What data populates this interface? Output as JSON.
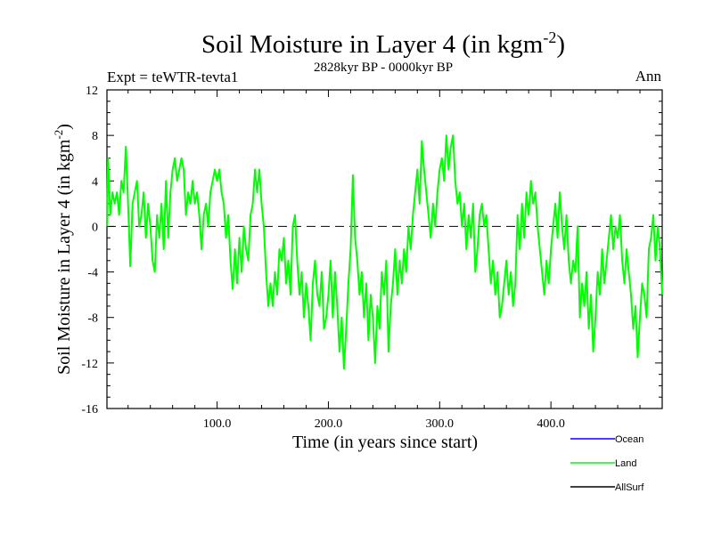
{
  "header": {
    "title": "Soil Moisture in Layer 4 (in kgm",
    "title_sup": "-2",
    "title_close": ")",
    "expt": "Expt = teWTR-tevta1",
    "period": "2828kyr BP - 0000kyr BP",
    "season": "Ann"
  },
  "axes": {
    "xlabel": "Time (in years since start)",
    "ylabel": "Soil Moisture in Layer 4 (in kgm",
    "ylabel_sup": "-2",
    "ylabel_close": ")"
  },
  "legend": {
    "items": [
      {
        "label": "Ocean",
        "color": "#0000ff"
      },
      {
        "label": "Land",
        "color": "#00ff00"
      },
      {
        "label": "AllSurf",
        "color": "#000000"
      }
    ]
  },
  "chart_data": {
    "type": "line",
    "title": "Soil Moisture in Layer 4 (in kgm-2)",
    "subtitle": "2828kyr BP - 0000kyr BP",
    "xlabel": "Time (in years since start)",
    "ylabel": "Soil Moisture in Layer 4 (in kgm-2)",
    "xlim": [
      1,
      500
    ],
    "ylim": [
      -16,
      12
    ],
    "xticks": [
      100,
      200,
      300,
      400
    ],
    "xtick_labels": [
      "100.0",
      "200.0",
      "300.0",
      "400.0"
    ],
    "yticks": [
      -16,
      -12,
      -8,
      -4,
      0,
      4,
      8,
      12
    ],
    "ytick_labels": [
      "-16",
      "-12",
      "-8",
      "-4",
      "0",
      "4",
      "8",
      "12"
    ],
    "zero_line": true,
    "series": [
      {
        "name": "Land",
        "color": "#00ff00",
        "points": [
          [
            1,
            0
          ],
          [
            2,
            6
          ],
          [
            4,
            1
          ],
          [
            6,
            3
          ],
          [
            8,
            2
          ],
          [
            10,
            3
          ],
          [
            12,
            1
          ],
          [
            14,
            4
          ],
          [
            16,
            3
          ],
          [
            18,
            7
          ],
          [
            20,
            2
          ],
          [
            22,
            -3.5
          ],
          [
            24,
            2
          ],
          [
            26,
            3
          ],
          [
            28,
            4
          ],
          [
            30,
            0
          ],
          [
            32,
            1
          ],
          [
            34,
            3
          ],
          [
            36,
            -1
          ],
          [
            38,
            2
          ],
          [
            40,
            0
          ],
          [
            42,
            -3
          ],
          [
            44,
            -4
          ],
          [
            46,
            1
          ],
          [
            48,
            -1
          ],
          [
            50,
            2
          ],
          [
            52,
            -2
          ],
          [
            54,
            4
          ],
          [
            56,
            -1
          ],
          [
            58,
            3
          ],
          [
            60,
            5
          ],
          [
            62,
            6
          ],
          [
            64,
            4
          ],
          [
            66,
            5
          ],
          [
            68,
            6
          ],
          [
            70,
            5
          ],
          [
            72,
            1
          ],
          [
            74,
            3
          ],
          [
            76,
            2
          ],
          [
            78,
            4
          ],
          [
            80,
            2
          ],
          [
            82,
            3
          ],
          [
            84,
            1
          ],
          [
            86,
            -2
          ],
          [
            88,
            1
          ],
          [
            90,
            2
          ],
          [
            92,
            0
          ],
          [
            94,
            3
          ],
          [
            96,
            4
          ],
          [
            98,
            5
          ],
          [
            100,
            4
          ],
          [
            102,
            5
          ],
          [
            104,
            3
          ],
          [
            106,
            2
          ],
          [
            108,
            -1
          ],
          [
            110,
            1
          ],
          [
            112,
            -3
          ],
          [
            114,
            -5.5
          ],
          [
            116,
            -2
          ],
          [
            118,
            -5
          ],
          [
            120,
            -1
          ],
          [
            122,
            -4
          ],
          [
            124,
            0
          ],
          [
            126,
            -2
          ],
          [
            128,
            -3
          ],
          [
            130,
            1
          ],
          [
            132,
            2
          ],
          [
            134,
            5
          ],
          [
            136,
            3
          ],
          [
            138,
            5
          ],
          [
            140,
            2
          ],
          [
            142,
            0
          ],
          [
            144,
            -4
          ],
          [
            146,
            -7
          ],
          [
            148,
            -5
          ],
          [
            150,
            -7
          ],
          [
            152,
            -4
          ],
          [
            154,
            -6
          ],
          [
            156,
            -2
          ],
          [
            158,
            -3
          ],
          [
            160,
            -1
          ],
          [
            162,
            -5
          ],
          [
            164,
            -3
          ],
          [
            166,
            -6
          ],
          [
            168,
            0
          ],
          [
            170,
            1
          ],
          [
            172,
            -3
          ],
          [
            174,
            -6
          ],
          [
            176,
            -4
          ],
          [
            178,
            -8
          ],
          [
            180,
            -5
          ],
          [
            182,
            -7
          ],
          [
            184,
            -10
          ],
          [
            186,
            -5
          ],
          [
            188,
            -3
          ],
          [
            190,
            -6
          ],
          [
            192,
            -7
          ],
          [
            194,
            -4
          ],
          [
            196,
            -9
          ],
          [
            198,
            -8
          ],
          [
            200,
            -6
          ],
          [
            202,
            -3
          ],
          [
            204,
            -8
          ],
          [
            206,
            -4
          ],
          [
            208,
            -7
          ],
          [
            210,
            -11
          ],
          [
            212,
            -8
          ],
          [
            214,
            -12.5
          ],
          [
            216,
            -9
          ],
          [
            218,
            -5
          ],
          [
            220,
            -2
          ],
          [
            222,
            4.5
          ],
          [
            224,
            -1
          ],
          [
            226,
            -3
          ],
          [
            228,
            -6
          ],
          [
            230,
            -4
          ],
          [
            232,
            -8
          ],
          [
            234,
            -5
          ],
          [
            236,
            -10
          ],
          [
            238,
            -6
          ],
          [
            240,
            -8
          ],
          [
            242,
            -12
          ],
          [
            244,
            -7
          ],
          [
            246,
            -9
          ],
          [
            248,
            -4
          ],
          [
            250,
            -6
          ],
          [
            252,
            -3
          ],
          [
            254,
            -11
          ],
          [
            256,
            -7
          ],
          [
            258,
            -5
          ],
          [
            260,
            -2
          ],
          [
            262,
            -6
          ],
          [
            264,
            -3
          ],
          [
            266,
            -5
          ],
          [
            268,
            -2
          ],
          [
            270,
            -4
          ],
          [
            272,
            0
          ],
          [
            274,
            -2
          ],
          [
            276,
            1
          ],
          [
            278,
            3
          ],
          [
            280,
            5
          ],
          [
            282,
            2
          ],
          [
            284,
            7.5
          ],
          [
            286,
            5
          ],
          [
            288,
            3
          ],
          [
            290,
            1
          ],
          [
            292,
            -1
          ],
          [
            294,
            2
          ],
          [
            296,
            0
          ],
          [
            298,
            3
          ],
          [
            300,
            5
          ],
          [
            302,
            6
          ],
          [
            304,
            4
          ],
          [
            306,
            8
          ],
          [
            308,
            5
          ],
          [
            310,
            7
          ],
          [
            312,
            8
          ],
          [
            314,
            4
          ],
          [
            316,
            2
          ],
          [
            318,
            3
          ],
          [
            320,
            0
          ],
          [
            322,
            2
          ],
          [
            324,
            -2
          ],
          [
            326,
            1
          ],
          [
            328,
            -1
          ],
          [
            330,
            2
          ],
          [
            332,
            -4
          ],
          [
            334,
            -2
          ],
          [
            336,
            1
          ],
          [
            338,
            2
          ],
          [
            340,
            0
          ],
          [
            342,
            1
          ],
          [
            344,
            -2
          ],
          [
            346,
            -5
          ],
          [
            348,
            -3
          ],
          [
            350,
            -6
          ],
          [
            352,
            -4
          ],
          [
            354,
            -8
          ],
          [
            356,
            -7
          ],
          [
            358,
            -5
          ],
          [
            360,
            -3
          ],
          [
            362,
            -6
          ],
          [
            364,
            -4
          ],
          [
            366,
            -7
          ],
          [
            368,
            -5
          ],
          [
            370,
            1
          ],
          [
            372,
            -2
          ],
          [
            374,
            2
          ],
          [
            376,
            -1
          ],
          [
            378,
            3
          ],
          [
            380,
            1
          ],
          [
            382,
            4
          ],
          [
            384,
            2
          ],
          [
            386,
            3
          ],
          [
            388,
            0
          ],
          [
            390,
            -2
          ],
          [
            392,
            -4
          ],
          [
            394,
            -6
          ],
          [
            396,
            -3
          ],
          [
            398,
            -5
          ],
          [
            400,
            -2
          ],
          [
            402,
            0
          ],
          [
            404,
            2
          ],
          [
            406,
            -1
          ],
          [
            408,
            3
          ],
          [
            410,
            0
          ],
          [
            412,
            -2
          ],
          [
            414,
            1
          ],
          [
            416,
            -3
          ],
          [
            418,
            -5
          ],
          [
            420,
            -3
          ],
          [
            422,
            -4
          ],
          [
            424,
            0
          ],
          [
            426,
            -8
          ],
          [
            428,
            -5
          ],
          [
            430,
            -7
          ],
          [
            432,
            -4
          ],
          [
            434,
            -9
          ],
          [
            436,
            -6
          ],
          [
            438,
            -11
          ],
          [
            440,
            -8
          ],
          [
            442,
            -4
          ],
          [
            444,
            -6
          ],
          [
            446,
            -2
          ],
          [
            448,
            -5
          ],
          [
            450,
            -3
          ],
          [
            452,
            -1
          ],
          [
            454,
            1
          ],
          [
            456,
            -2
          ],
          [
            458,
            0
          ],
          [
            460,
            -1
          ],
          [
            462,
            1
          ],
          [
            464,
            -3
          ],
          [
            466,
            -5
          ],
          [
            468,
            -2
          ],
          [
            470,
            -4
          ],
          [
            472,
            -6
          ],
          [
            474,
            -9
          ],
          [
            476,
            -7
          ],
          [
            478,
            -11.5
          ],
          [
            480,
            -8
          ],
          [
            482,
            -5
          ],
          [
            484,
            -6
          ],
          [
            486,
            -8
          ],
          [
            488,
            -2
          ],
          [
            490,
            -1
          ],
          [
            492,
            1
          ],
          [
            494,
            -3
          ],
          [
            496,
            0
          ],
          [
            498,
            -2
          ],
          [
            500,
            -6
          ]
        ]
      }
    ]
  }
}
